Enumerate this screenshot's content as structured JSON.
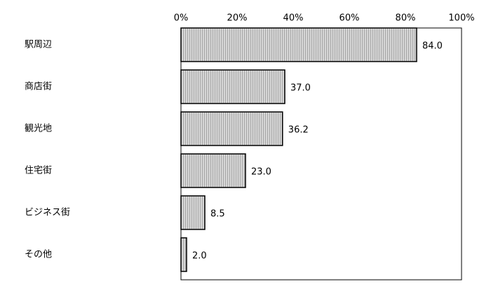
{
  "chart_data": {
    "type": "bar",
    "orientation": "horizontal",
    "categories": [
      "駅周辺",
      "商店街",
      "観光地",
      "住宅街",
      "ビジネス街",
      "その他"
    ],
    "values": [
      84.0,
      37.0,
      36.2,
      23.0,
      8.5,
      2.0
    ],
    "value_labels": [
      "84.0",
      "37.0",
      "36.2",
      "23.0",
      "8.5",
      "2.0"
    ],
    "color": "#c8c8c8",
    "xlim": [
      0,
      100
    ],
    "xticks": [
      {
        "value": 0,
        "label": "0%"
      },
      {
        "value": 20,
        "label": "20%"
      },
      {
        "value": 40,
        "label": "40%"
      },
      {
        "value": 60,
        "label": "60%"
      },
      {
        "value": 80,
        "label": "80%"
      },
      {
        "value": 100,
        "label": "100%"
      }
    ]
  }
}
